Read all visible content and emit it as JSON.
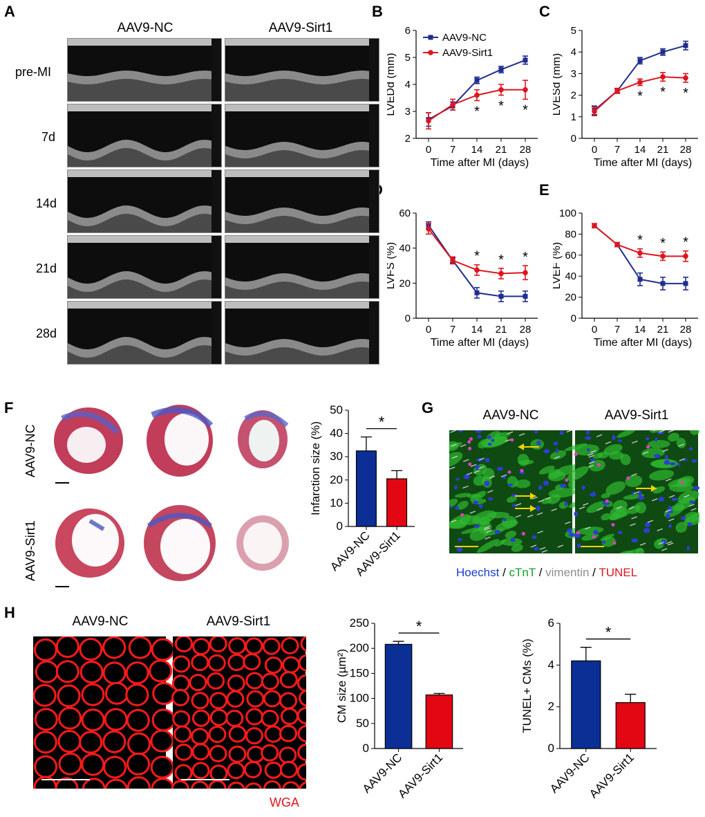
{
  "panels": {
    "A": "A",
    "B": "B",
    "C": "C",
    "D": "D",
    "E": "E",
    "F": "F",
    "G": "G",
    "H": "H"
  },
  "panelA": {
    "col_nc": "AAV9-NC",
    "col_sirt1": "AAV9-Sirt1",
    "rows": [
      "pre-MI",
      "7d",
      "14d",
      "21d",
      "28d"
    ]
  },
  "colors": {
    "nc": "#1f2d8f",
    "sirt1": "#e0141e",
    "bar_nc": "#0b2f95",
    "bar_sirt1": "#e30613"
  },
  "chart_data": [
    {
      "id": "B",
      "type": "line",
      "ylabel": "LVEDd (mm)",
      "xlabel": "Time after MI (days)",
      "x": [
        0,
        7,
        14,
        21,
        28
      ],
      "ylim": [
        2,
        6
      ],
      "yticks": [
        2,
        3,
        4,
        5,
        6
      ],
      "legend": [
        "AAV9-NC",
        "AAV9-Sirt1"
      ],
      "legend_position": "top-left",
      "series": [
        {
          "name": "AAV9-NC",
          "values": [
            2.7,
            3.2,
            4.15,
            4.55,
            4.9
          ],
          "err": [
            0.25,
            0.15,
            0.12,
            0.12,
            0.15
          ]
        },
        {
          "name": "AAV9-Sirt1",
          "values": [
            2.65,
            3.25,
            3.6,
            3.8,
            3.8
          ],
          "err": [
            0.3,
            0.2,
            0.2,
            0.2,
            0.35
          ]
        }
      ],
      "sig_x": [
        14,
        21,
        28
      ],
      "sig_label": "*"
    },
    {
      "id": "C",
      "type": "line",
      "ylabel": "LVESd (mm)",
      "xlabel": "Time after MI (days)",
      "x": [
        0,
        7,
        14,
        21,
        28
      ],
      "ylim": [
        0,
        5
      ],
      "yticks": [
        0,
        1,
        2,
        3,
        4,
        5
      ],
      "series": [
        {
          "name": "AAV9-NC",
          "values": [
            1.3,
            2.2,
            3.6,
            4.0,
            4.3
          ],
          "err": [
            0.2,
            0.1,
            0.15,
            0.15,
            0.2
          ]
        },
        {
          "name": "AAV9-Sirt1",
          "values": [
            1.25,
            2.2,
            2.6,
            2.85,
            2.8
          ],
          "err": [
            0.2,
            0.12,
            0.15,
            0.2,
            0.2
          ]
        }
      ],
      "sig_x": [
        14,
        21,
        28
      ],
      "sig_label": "*"
    },
    {
      "id": "D",
      "type": "line",
      "ylabel": "LVFS (%)",
      "xlabel": "Time after MI (days)",
      "x": [
        0,
        7,
        14,
        21,
        28
      ],
      "ylim": [
        0,
        60
      ],
      "yticks": [
        0,
        20,
        40,
        60
      ],
      "series": [
        {
          "name": "AAV9-NC",
          "values": [
            53,
            33,
            14.5,
            12.5,
            12.5
          ],
          "err": [
            2,
            1.5,
            3,
            3,
            3
          ]
        },
        {
          "name": "AAV9-Sirt1",
          "values": [
            51,
            33,
            27.5,
            25.5,
            26
          ],
          "err": [
            3,
            2,
            3,
            3,
            4
          ]
        }
      ],
      "sig_x": [
        14,
        21,
        28
      ],
      "sig_label": "*"
    },
    {
      "id": "E",
      "type": "line",
      "ylabel": "LVEF (%)",
      "xlabel": "Time after MI (days)",
      "x": [
        0,
        7,
        14,
        21,
        28
      ],
      "ylim": [
        0,
        100
      ],
      "yticks": [
        0,
        20,
        40,
        60,
        80,
        100
      ],
      "series": [
        {
          "name": "AAV9-NC",
          "values": [
            88,
            70,
            37,
            33,
            33
          ],
          "err": [
            2,
            2,
            6,
            6,
            6
          ]
        },
        {
          "name": "AAV9-Sirt1",
          "values": [
            88,
            70,
            62,
            59,
            59
          ],
          "err": [
            2,
            2,
            4,
            4,
            5
          ]
        }
      ],
      "sig_x": [
        14,
        21,
        28
      ],
      "sig_label": "*"
    },
    {
      "id": "F",
      "type": "bar",
      "ylabel": "Infarction size (%)",
      "categories": [
        "AAV9-NC",
        "AAV9-Sirt1"
      ],
      "values": [
        32.5,
        20.5
      ],
      "err": [
        6,
        3.5
      ],
      "ylim": [
        0,
        50
      ],
      "yticks": [
        0,
        10,
        20,
        30,
        40,
        50
      ],
      "sig_label": "*"
    },
    {
      "id": "H1",
      "type": "bar",
      "ylabel": "CM size (µm²)",
      "categories": [
        "AAV9-NC",
        "AAV9-Sirt1"
      ],
      "values": [
        208,
        107
      ],
      "err": [
        6,
        3
      ],
      "ylim": [
        0,
        250
      ],
      "yticks": [
        0,
        50,
        100,
        150,
        200,
        250
      ],
      "sig_label": "*"
    },
    {
      "id": "H2",
      "type": "bar",
      "ylabel": "TUNEL+ CMs (%)",
      "categories": [
        "AAV9-NC",
        "AAV9-Sirt1"
      ],
      "values": [
        4.2,
        2.2
      ],
      "err": [
        0.65,
        0.4
      ],
      "ylim": [
        0,
        6
      ],
      "yticks": [
        0,
        2,
        4,
        6
      ],
      "sig_label": "*"
    }
  ],
  "panelF": {
    "row_nc": "AAV9-NC",
    "row_sirt1": "AAV9-Sirt1"
  },
  "panelG": {
    "col_nc": "AAV9-NC",
    "col_sirt1": "AAV9-Sirt1",
    "legend": [
      {
        "text": "Hoechst",
        "color": "#1a3cc8"
      },
      {
        "text": " / ",
        "color": "#000000"
      },
      {
        "text": "cTnT",
        "color": "#12a02a"
      },
      {
        "text": " / ",
        "color": "#000000"
      },
      {
        "text": "vimentin",
        "color": "#8c8c8c"
      },
      {
        "text": " / ",
        "color": "#000000"
      },
      {
        "text": "TUNEL",
        "color": "#e0141e"
      }
    ]
  },
  "panelH": {
    "col_nc": "AAV9-NC",
    "col_sirt1": "AAV9-Sirt1",
    "stain": "WGA"
  }
}
